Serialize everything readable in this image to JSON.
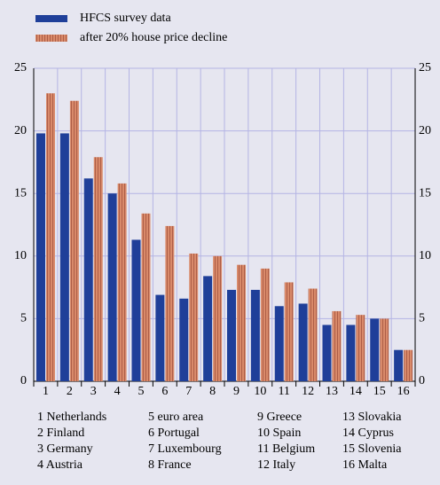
{
  "chart_data": {
    "type": "bar",
    "categories": [
      "1",
      "2",
      "3",
      "4",
      "5",
      "6",
      "7",
      "8",
      "9",
      "10",
      "11",
      "12",
      "13",
      "14",
      "15",
      "16"
    ],
    "series": [
      {
        "name": "HFCS survey data",
        "color": "#1f3f99",
        "values": [
          19.8,
          19.8,
          16.2,
          15.0,
          11.3,
          6.9,
          6.6,
          8.4,
          7.3,
          7.3,
          6.0,
          6.2,
          4.5,
          4.5,
          5.0,
          2.5
        ]
      },
      {
        "name": "after 20% house price decline",
        "color": "#d98a6a",
        "values": [
          23.0,
          22.4,
          17.9,
          15.8,
          13.4,
          12.4,
          10.2,
          10.0,
          9.3,
          9.0,
          7.9,
          7.4,
          5.6,
          5.3,
          5.0,
          2.5
        ]
      }
    ],
    "ylim": [
      0,
      25
    ],
    "yticks": [
      0,
      5,
      10,
      15,
      20,
      25
    ],
    "y2lim": [
      0,
      25
    ],
    "y2ticks": [
      0,
      5,
      10,
      15,
      20,
      25
    ],
    "grid": true,
    "footnote_labels": [
      "1 Netherlands",
      "2 Finland",
      "3 Germany",
      "4 Austria",
      "5 euro area",
      "6 Portugal",
      "7 Luxembourg",
      "8 France",
      "9 Greece",
      "10 Spain",
      "11 Belgium",
      "12 Italy",
      "13 Slovakia",
      "14 Cyprus",
      "15 Slovenia",
      "16 Malta"
    ]
  }
}
